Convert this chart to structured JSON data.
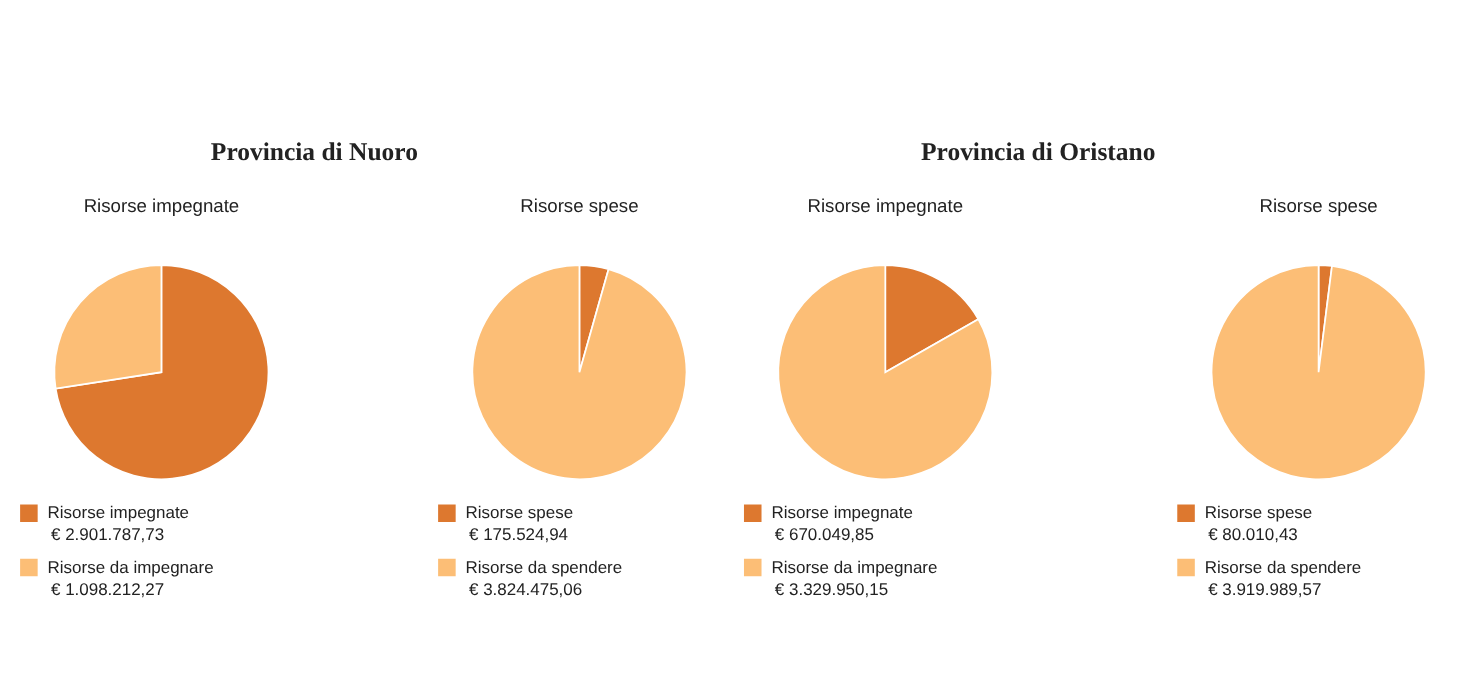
{
  "chart_data": [
    {
      "type": "pie",
      "title": "Risorse impegnate",
      "annotations": [
        "Provincia di Nuoro"
      ],
      "legend": "bottom",
      "categories": [
        "Risorse impegnate",
        "Risorse da impegnare"
      ],
      "values": [
        2901787.73,
        1098212.27
      ],
      "value_labels": [
        "€ 2.901.787,73",
        "€ 1.098.212,27"
      ],
      "colors": [
        "#dd782f",
        "#fcbe76"
      ]
    },
    {
      "type": "pie",
      "title": "Risorse spese",
      "legend": "bottom",
      "categories": [
        "Risorse spese",
        "Risorse da spendere"
      ],
      "values": [
        175524.94,
        3824475.06
      ],
      "value_labels": [
        "€ 175.524,94",
        "€ 3.824.475,06"
      ],
      "colors": [
        "#dd782f",
        "#fcbe76"
      ]
    },
    {
      "type": "pie",
      "title": "Risorse impegnate",
      "annotations": [
        "Provincia di Oristano"
      ],
      "legend": "bottom",
      "categories": [
        "Risorse impegnate",
        "Risorse da impegnare"
      ],
      "values": [
        670049.85,
        3329950.15
      ],
      "value_labels": [
        "€ 670.049,85",
        "€ 3.329.950,15"
      ],
      "colors": [
        "#dd782f",
        "#fcbe76"
      ]
    },
    {
      "type": "pie",
      "title": "Risorse spese",
      "legend": "bottom",
      "categories": [
        "Risorse spese",
        "Risorse da spendere"
      ],
      "values": [
        80010.43,
        3919989.57
      ],
      "value_labels": [
        "€ 80.010,43",
        "€ 3.919.989,57"
      ],
      "colors": [
        "#dd782f",
        "#fcbe76"
      ]
    }
  ]
}
